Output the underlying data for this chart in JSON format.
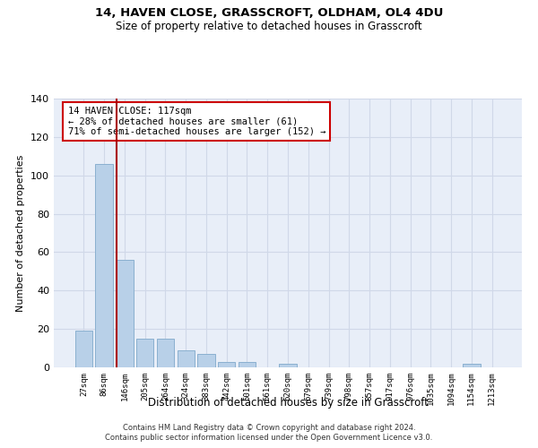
{
  "title1": "14, HAVEN CLOSE, GRASSCROFT, OLDHAM, OL4 4DU",
  "title2": "Size of property relative to detached houses in Grasscroft",
  "xlabel": "Distribution of detached houses by size in Grasscroft",
  "ylabel": "Number of detached properties",
  "categories": [
    "27sqm",
    "86sqm",
    "146sqm",
    "205sqm",
    "264sqm",
    "324sqm",
    "383sqm",
    "442sqm",
    "501sqm",
    "561sqm",
    "620sqm",
    "679sqm",
    "739sqm",
    "798sqm",
    "857sqm",
    "917sqm",
    "976sqm",
    "1035sqm",
    "1094sqm",
    "1154sqm",
    "1213sqm"
  ],
  "values": [
    19,
    106,
    56,
    15,
    15,
    9,
    7,
    3,
    3,
    0,
    2,
    0,
    0,
    0,
    0,
    0,
    0,
    0,
    0,
    2,
    0
  ],
  "bar_color": "#b8d0e8",
  "bar_edge_color": "#8ab0d0",
  "grid_color": "#d0d8e8",
  "bg_color": "#e8eef8",
  "vline_x_pos": 1.62,
  "vline_color": "#aa0000",
  "annotation_text": "14 HAVEN CLOSE: 117sqm\n← 28% of detached houses are smaller (61)\n71% of semi-detached houses are larger (152) →",
  "annotation_box_color": "#ffffff",
  "annotation_edge_color": "#cc0000",
  "ylim": [
    0,
    140
  ],
  "yticks": [
    0,
    20,
    40,
    60,
    80,
    100,
    120,
    140
  ],
  "footer1": "Contains HM Land Registry data © Crown copyright and database right 2024.",
  "footer2": "Contains public sector information licensed under the Open Government Licence v3.0."
}
